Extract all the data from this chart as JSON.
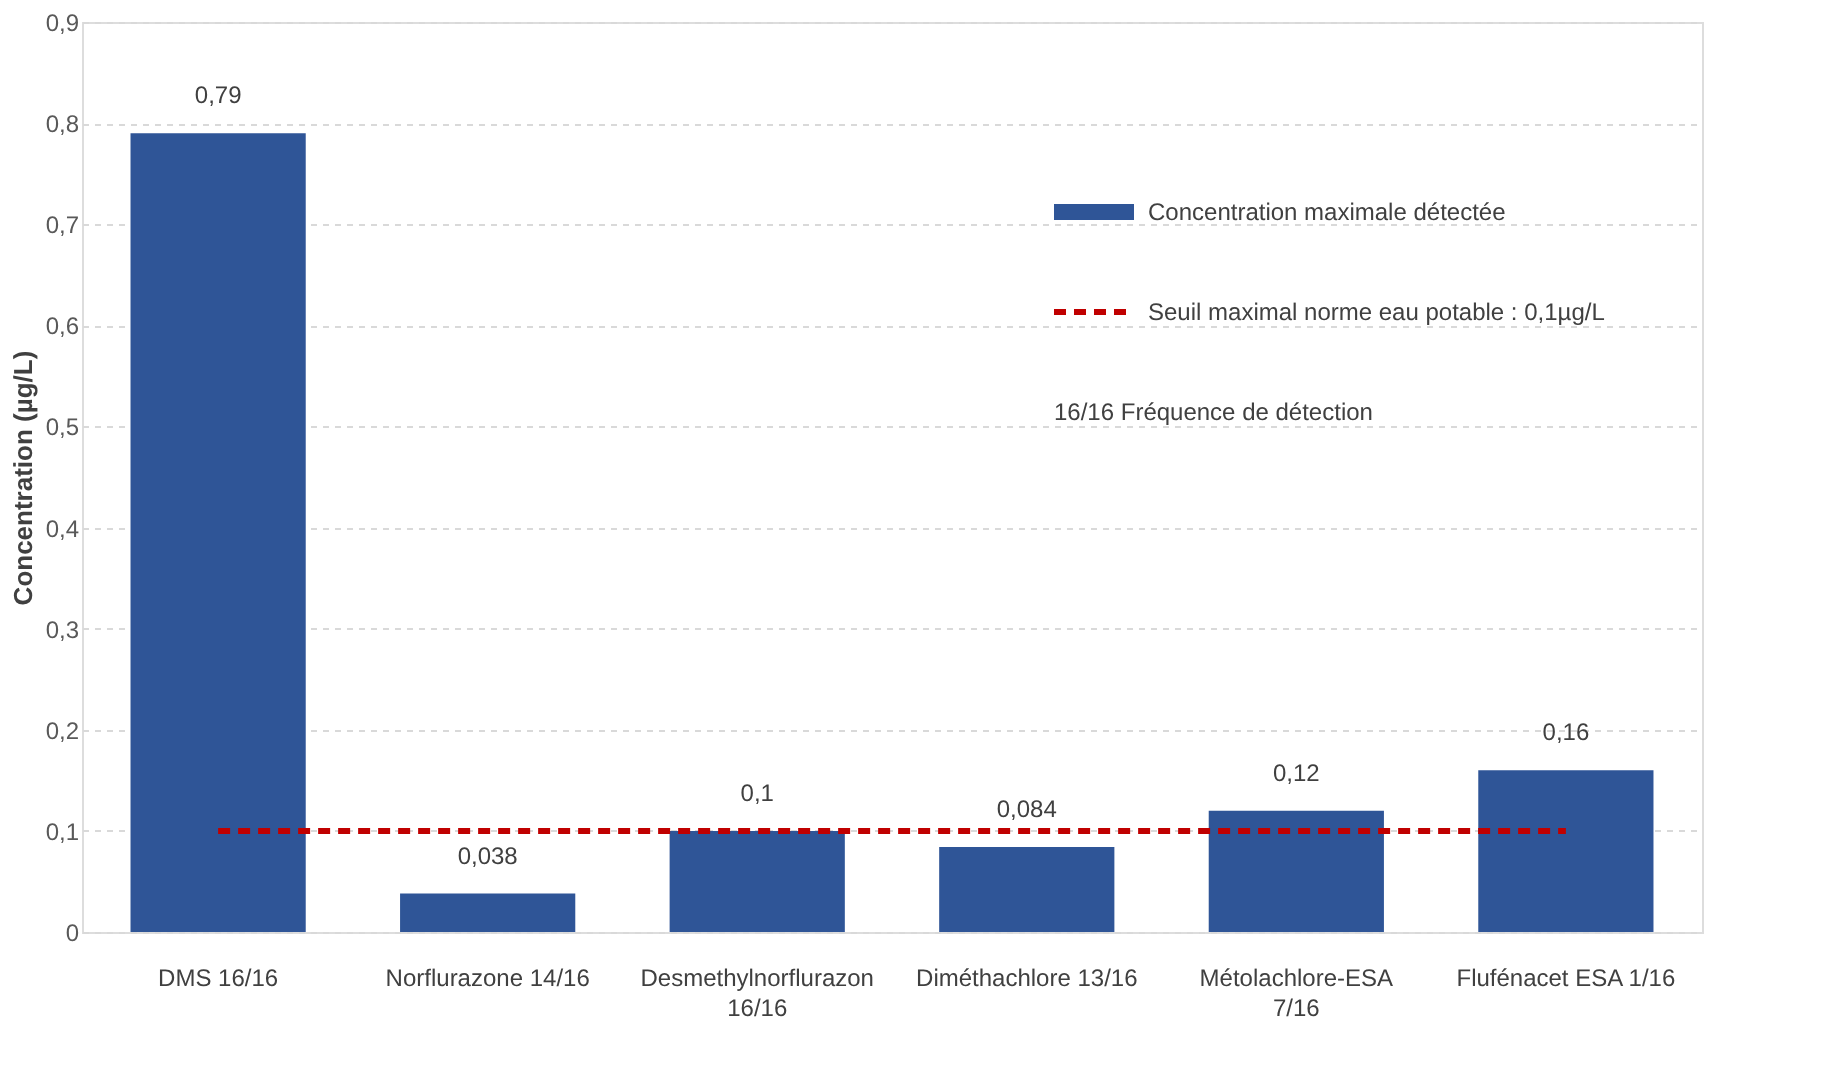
{
  "chart_data": {
    "type": "bar",
    "categories": [
      "DMS 16/16",
      "Norflurazone 14/16",
      "Desmethylnorflurazon 16/16",
      "Diméthachlore 13/16",
      "Métolachlore-ESA 7/16",
      "Flufénacet ESA 1/16"
    ],
    "series": [
      {
        "name": "Concentration maximale détectée",
        "color": "#2f5597",
        "values": [
          0.79,
          0.038,
          0.1,
          0.084,
          0.12,
          0.16
        ],
        "value_labels": [
          "0,79",
          "0,038",
          "0,1",
          "0,084",
          "0,12",
          "0,16"
        ]
      }
    ],
    "ylabel": "Concentration (µg/L)",
    "ylim": [
      0,
      0.9
    ],
    "yticks": [
      {
        "value": 0,
        "label": "0"
      },
      {
        "value": 0.1,
        "label": "0,1"
      },
      {
        "value": 0.2,
        "label": "0,2"
      },
      {
        "value": 0.3,
        "label": "0,3"
      },
      {
        "value": 0.4,
        "label": "0,4"
      },
      {
        "value": 0.5,
        "label": "0,5"
      },
      {
        "value": 0.6,
        "label": "0,6"
      },
      {
        "value": 0.7,
        "label": "0,7"
      },
      {
        "value": 0.8,
        "label": "0,8"
      },
      {
        "value": 0.9,
        "label": "0,9"
      }
    ],
    "ref_lines": [
      {
        "axis": "y",
        "value": 0.1,
        "label": "Seuil maximal norme eau potable : 0,1µg/L",
        "color": "#c00000",
        "line_style": "dashed"
      }
    ],
    "annotations": [
      "16/16   Fréquence de détection"
    ],
    "grid": "y",
    "legend": "top right"
  }
}
